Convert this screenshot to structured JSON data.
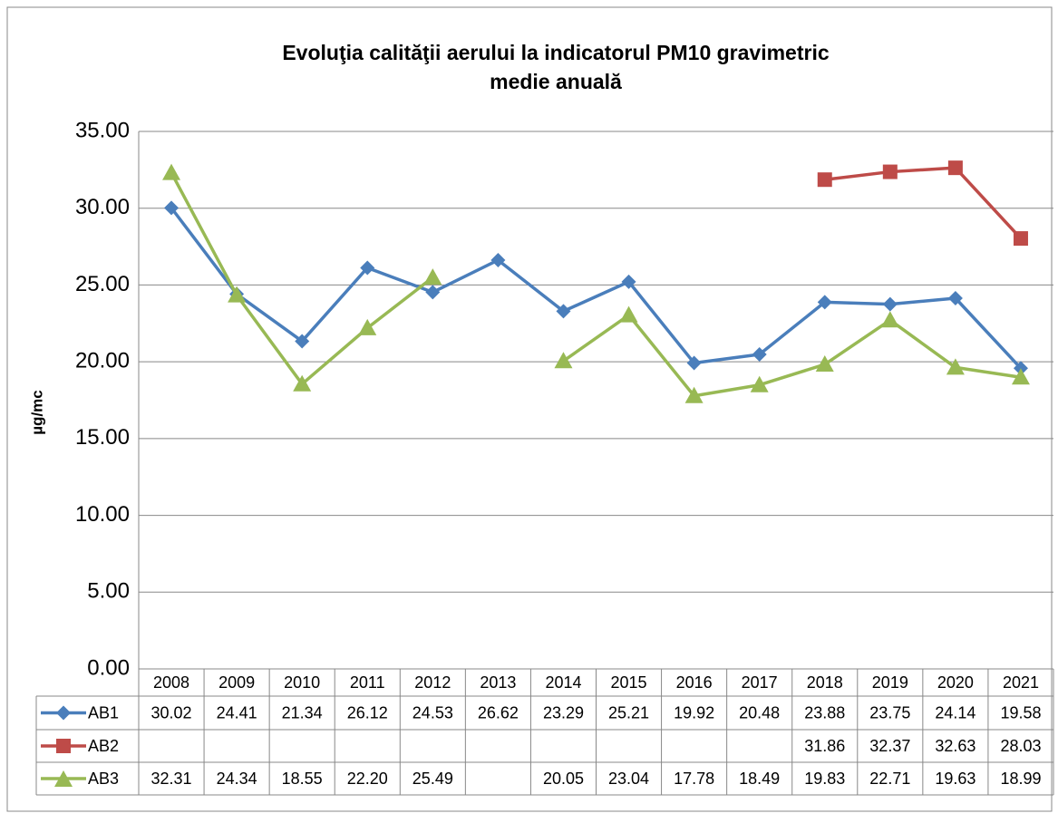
{
  "chart_data": {
    "type": "line",
    "title": "Evoluţia calităţii aerului la indicatorul PM10 gravimetric",
    "subtitle": "medie anuală",
    "y_label": "µg/mc",
    "categories": [
      "2008",
      "2009",
      "2010",
      "2011",
      "2012",
      "2013",
      "2014",
      "2015",
      "2016",
      "2017",
      "2018",
      "2019",
      "2020",
      "2021"
    ],
    "series": [
      {
        "name": "AB1",
        "color": "#4a7ebb",
        "marker": "diamond",
        "values": [
          30.02,
          24.41,
          21.34,
          26.12,
          24.53,
          26.62,
          23.29,
          25.21,
          19.92,
          20.48,
          23.88,
          23.75,
          24.14,
          19.58
        ],
        "value_labels": [
          "30.02",
          "24.41",
          "21.34",
          "26.12",
          "24.53",
          "26.62",
          "23.29",
          "25.21",
          "19.92",
          "20.48",
          "23.88",
          "23.75",
          "24.14",
          "19.58"
        ]
      },
      {
        "name": "AB2",
        "color": "#be4b48",
        "marker": "square",
        "values": [
          null,
          null,
          null,
          null,
          null,
          null,
          null,
          null,
          null,
          null,
          31.86,
          32.37,
          32.63,
          28.03
        ],
        "value_labels": [
          null,
          null,
          null,
          null,
          null,
          null,
          null,
          null,
          null,
          null,
          "31.86",
          "32.37",
          "32.63",
          "28.03"
        ]
      },
      {
        "name": "AB3",
        "color": "#98b954",
        "marker": "triangle",
        "values": [
          32.31,
          24.34,
          18.55,
          22.2,
          25.49,
          null,
          20.05,
          23.04,
          17.78,
          18.49,
          19.83,
          22.71,
          19.63,
          18.99
        ],
        "value_labels": [
          "32.31",
          "24.34",
          "18.55",
          "22.20",
          "25.49",
          null,
          "20.05",
          "23.04",
          "17.78",
          "18.49",
          "19.83",
          "22.71",
          "19.63",
          "18.99"
        ]
      }
    ],
    "ylim": [
      0,
      35
    ],
    "yticks": [
      {
        "value": 0,
        "label": "0.00"
      },
      {
        "value": 5,
        "label": "5.00"
      },
      {
        "value": 10,
        "label": "10.00"
      },
      {
        "value": 15,
        "label": "15.00"
      },
      {
        "value": 20,
        "label": "20.00"
      },
      {
        "value": 25,
        "label": "25.00"
      },
      {
        "value": 30,
        "label": "30.00"
      },
      {
        "value": 35,
        "label": "35.00"
      }
    ],
    "grid": true
  }
}
